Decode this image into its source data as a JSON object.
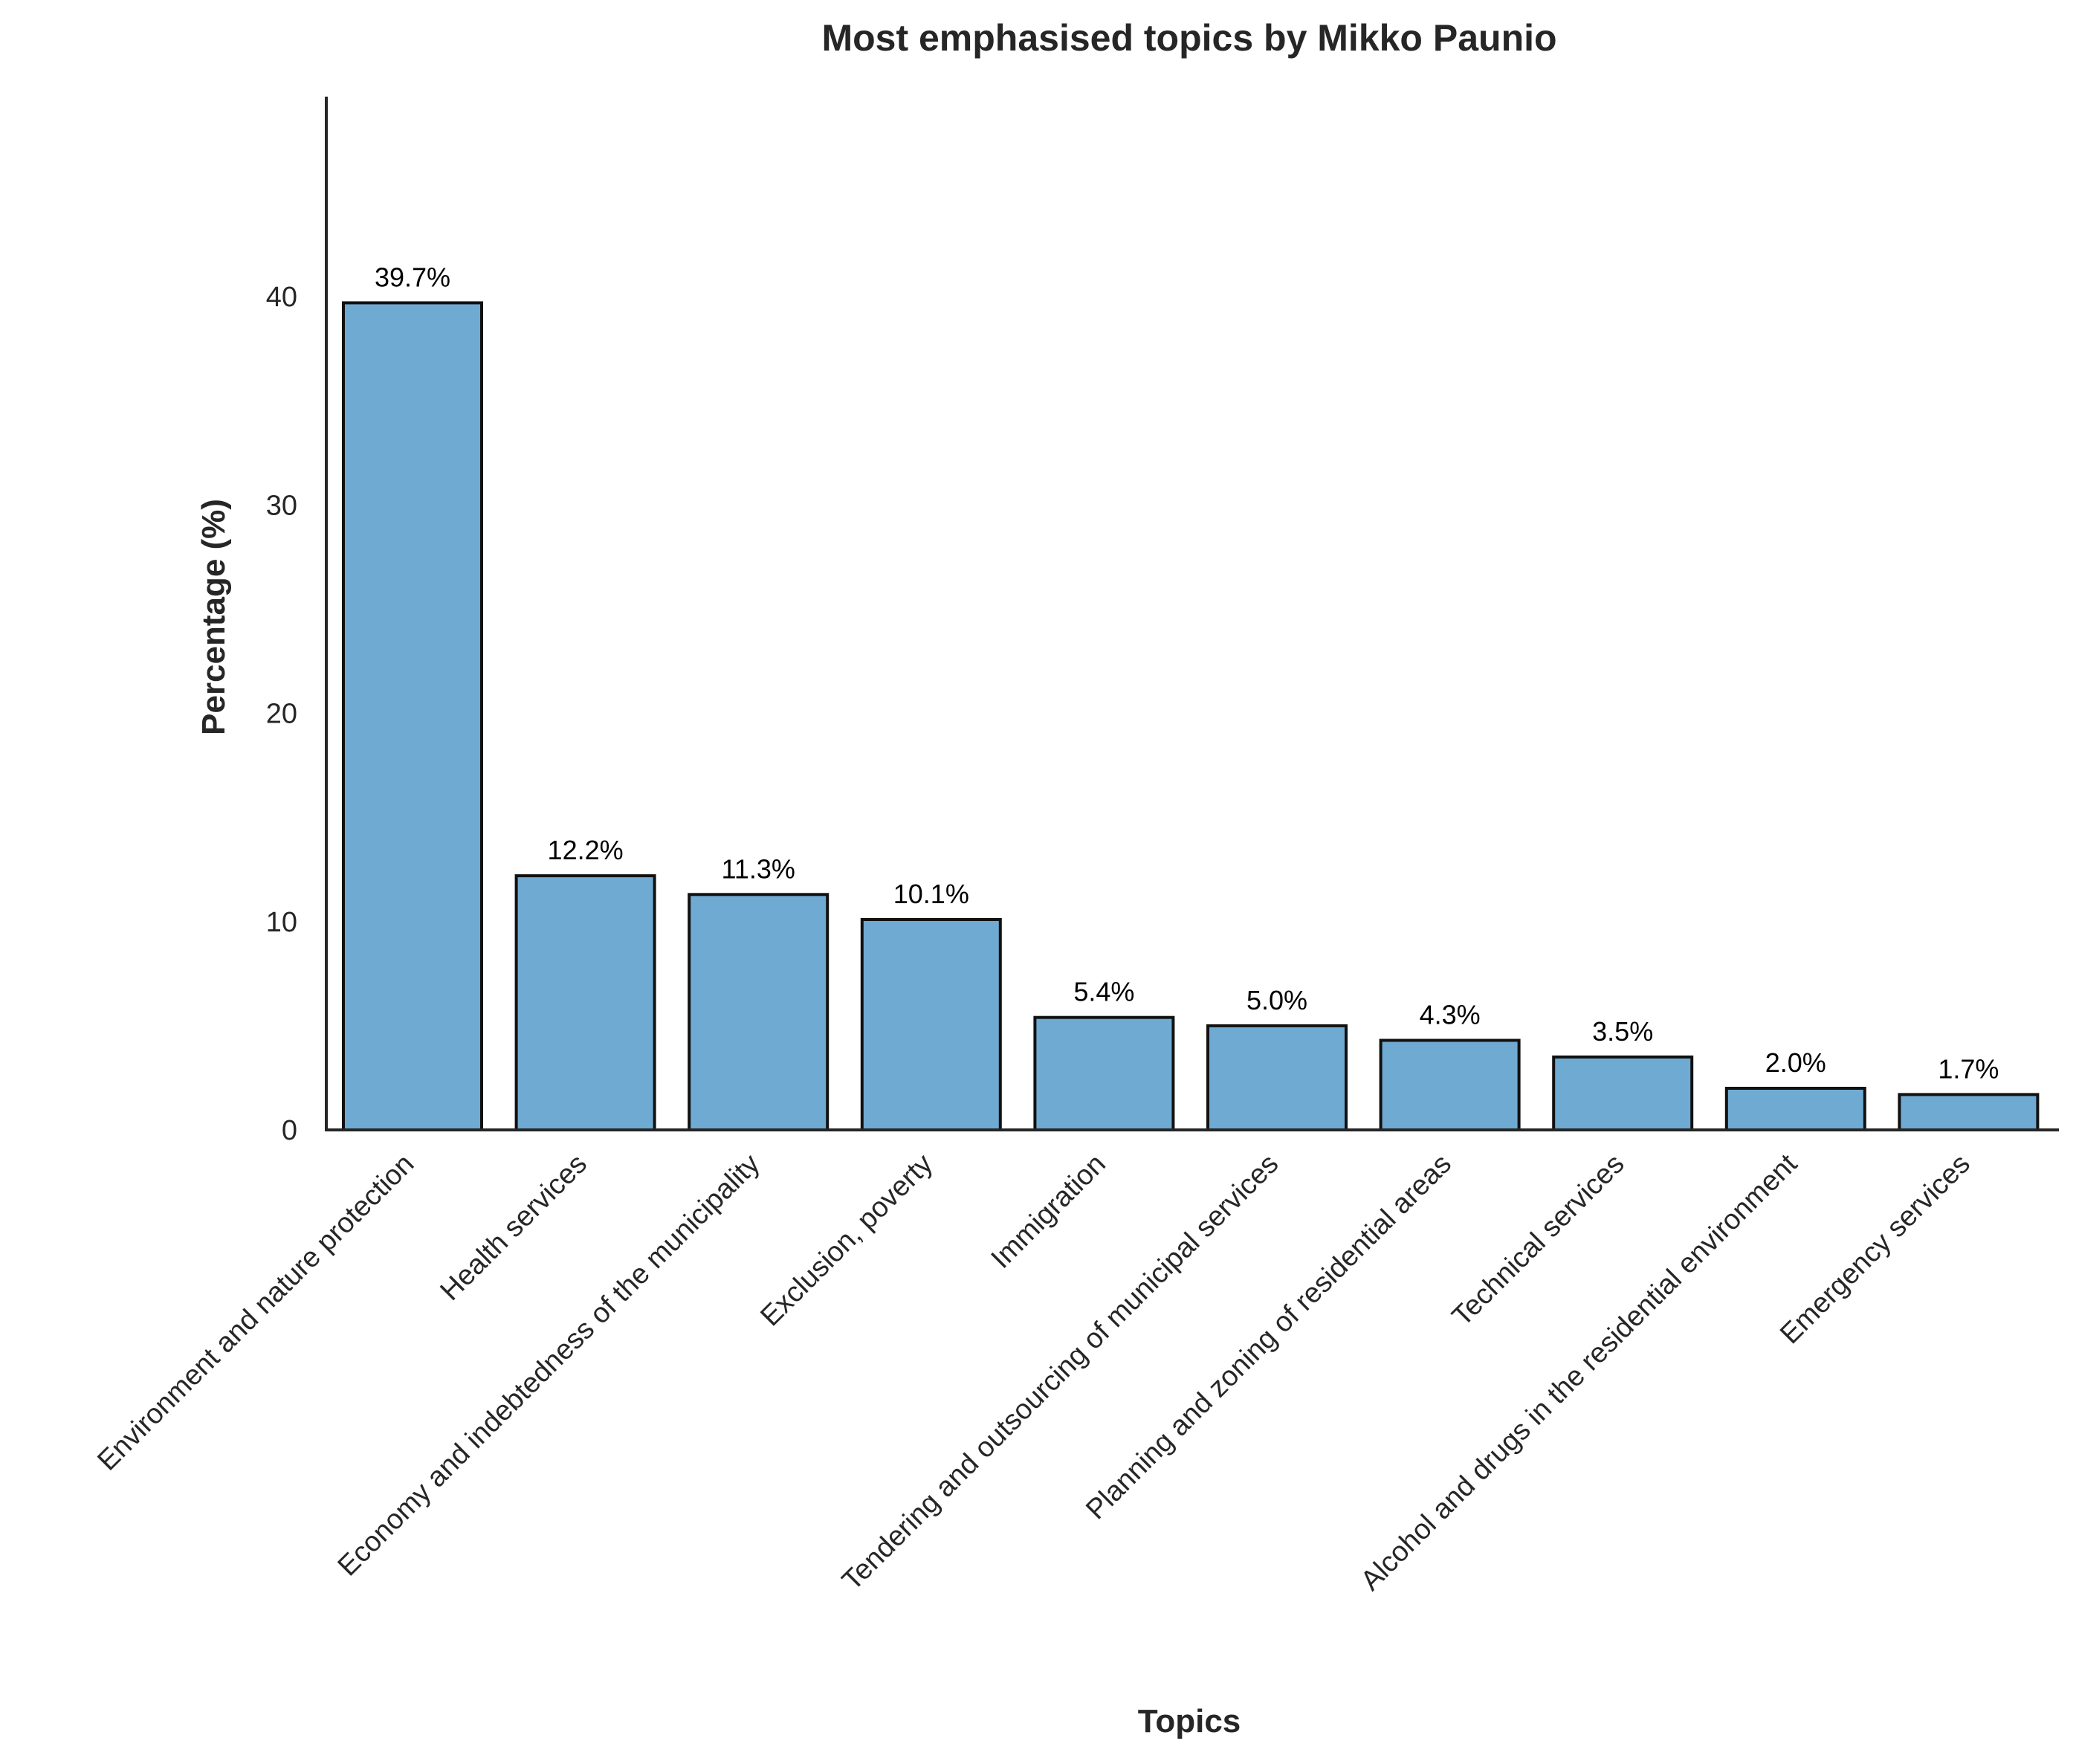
{
  "chart_data": {
    "type": "bar",
    "title": "Most emphasised topics by Mikko Paunio",
    "xlabel": "Topics",
    "ylabel": "Percentage (%)",
    "categories": [
      "Environment and nature protection",
      "Health services",
      "Economy and indebtedness of the municipality",
      "Exclusion, poverty",
      "Immigration",
      "Tendering and outsourcing of municipal services",
      "Planning and zoning of residential areas",
      "Technical services",
      "Alcohol and drugs in the residential environment",
      "Emergency services"
    ],
    "values": [
      39.7,
      12.2,
      11.3,
      10.1,
      5.4,
      5.0,
      4.3,
      3.5,
      2.0,
      1.7
    ],
    "value_labels": [
      "39.7%",
      "12.2%",
      "11.3%",
      "10.1%",
      "5.4%",
      "5.0%",
      "4.3%",
      "3.5%",
      "2.0%",
      "1.7%"
    ],
    "ylim": [
      0,
      49.6
    ],
    "yticks": [
      0,
      10,
      20,
      30,
      40
    ],
    "ytick_labels": [
      "0",
      "10",
      "20",
      "30",
      "40"
    ],
    "grid": false,
    "legend": "none",
    "colors": {
      "bar_fill": "#6faad2",
      "bar_edge": "#111111",
      "axis": "#262626"
    }
  }
}
